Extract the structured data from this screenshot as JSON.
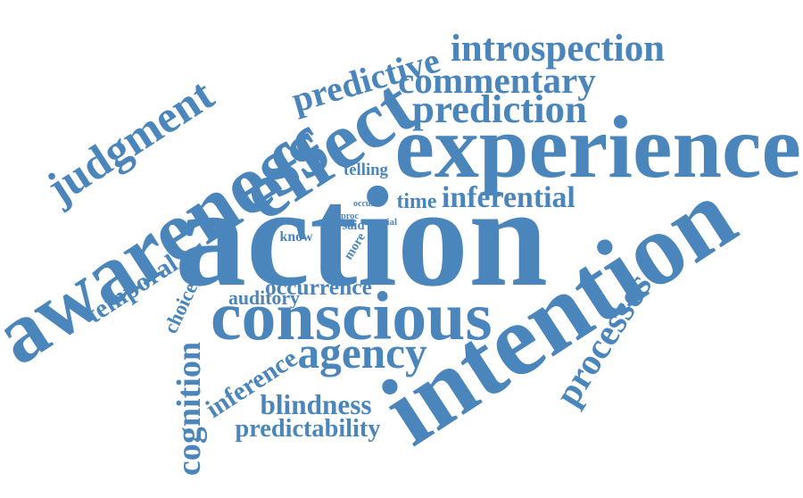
{
  "color": "#4a86bb",
  "words": [
    {
      "text": "action",
      "rot": 0
    },
    {
      "text": "intention",
      "rot": -33
    },
    {
      "text": "awareness",
      "rot": -33
    },
    {
      "text": "experience",
      "rot": 0
    },
    {
      "text": "effect",
      "rot": -33
    },
    {
      "text": "conscious",
      "rot": 0
    },
    {
      "text": "judgment",
      "rot": -33
    },
    {
      "text": "cognition",
      "rot": -90
    },
    {
      "text": "predictive",
      "rot": -16
    },
    {
      "text": "introspection",
      "rot": 0
    },
    {
      "text": "commentary",
      "rot": 0
    },
    {
      "text": "prediction",
      "rot": 0
    },
    {
      "text": "processes",
      "rot": -58
    },
    {
      "text": "agency",
      "rot": 0
    },
    {
      "text": "blindness",
      "rot": 0
    },
    {
      "text": "predictability",
      "rot": 0
    },
    {
      "text": "inferential",
      "rot": 0
    },
    {
      "text": "inference",
      "rot": -33
    },
    {
      "text": "temporal",
      "rot": -33
    },
    {
      "text": "occurrence",
      "rot": 0
    },
    {
      "text": "auditory",
      "rot": 0
    },
    {
      "text": "time",
      "rot": 0
    },
    {
      "text": "telling",
      "rot": 0
    },
    {
      "text": "choice",
      "rot": -65
    },
    {
      "text": "know",
      "rot": 0
    },
    {
      "text": "more",
      "rot": -58
    },
    {
      "text": "said",
      "rot": 0
    },
    {
      "text": "occur",
      "rot": 0
    },
    {
      "text": "proc",
      "rot": 0
    },
    {
      "text": "trial",
      "rot": 0
    }
  ]
}
